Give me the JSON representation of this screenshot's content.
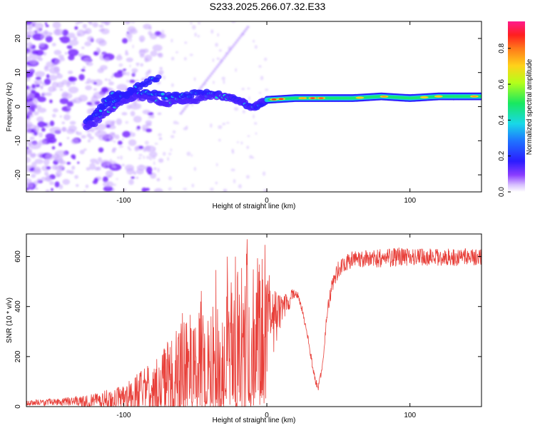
{
  "title": "S233.2025.266.07.32.E33",
  "chart_data": [
    {
      "type": "heatmap",
      "xlabel": "Height of straight line (km)",
      "ylabel": "Frequency (Hz)",
      "xlim": [
        -168,
        150
      ],
      "ylim": [
        -25,
        25
      ],
      "xticks": [
        -100,
        0,
        100
      ],
      "xtick_labels": [
        "-100",
        "0",
        "100"
      ],
      "yticks": [
        -20,
        -10,
        0,
        10,
        20
      ],
      "ytick_labels": [
        "-20",
        "-10",
        "0",
        "10",
        "20"
      ],
      "ridge": {
        "x": [
          -126,
          -118,
          -110,
          -100,
          -90,
          -80,
          -70,
          -60,
          -50,
          -40,
          -30,
          -20,
          -12,
          -8,
          0,
          20,
          40,
          60,
          80,
          100,
          120,
          145
        ],
        "upper_freq": [
          -5,
          -1,
          3,
          4,
          4,
          4,
          3,
          3,
          4,
          4,
          3,
          2,
          0,
          0,
          2,
          2.5,
          2.5,
          2.5,
          3,
          2.5,
          3,
          3
        ],
        "lower_freq": [
          -6,
          -4,
          -1,
          2,
          3,
          2,
          1,
          2,
          2,
          3,
          3,
          2,
          0,
          0,
          2,
          2.5,
          2.5,
          2.5,
          3,
          2.5,
          3,
          3
        ]
      },
      "upper_branch": {
        "x": [
          -120,
          -110,
          -100,
          -90,
          -80,
          -75
        ],
        "freq": [
          -3,
          1,
          3,
          6,
          8,
          9
        ]
      },
      "colorbar": {
        "label": "Normalized spectral amplitude",
        "min": 0.0,
        "max": 0.95,
        "ticks": [
          0.0,
          0.2,
          0.4,
          0.6,
          0.8
        ],
        "tick_labels": [
          "0.0",
          "0.2",
          "0.4",
          "0.6",
          "0.8"
        ]
      }
    },
    {
      "type": "line",
      "xlabel": "Height of straight line (km)",
      "ylabel": "SNR (10 * v/v)",
      "xlim": [
        -168,
        150
      ],
      "ylim": [
        0,
        690
      ],
      "xticks": [
        -100,
        0,
        100
      ],
      "xtick_labels": [
        "-100",
        "0",
        "100"
      ],
      "yticks": [
        0,
        200,
        400,
        600
      ],
      "ytick_labels": [
        "0",
        "200",
        "400",
        "600"
      ],
      "color": "#e8403a",
      "envelope": {
        "x": [
          -168,
          -140,
          -120,
          -100,
          -90,
          -80,
          -70,
          -60,
          -50,
          -40,
          -30,
          -20,
          -10,
          0,
          10,
          15,
          20,
          22,
          25,
          28,
          30,
          32,
          34,
          36,
          38,
          40,
          42,
          45,
          50,
          60,
          80,
          100,
          120,
          150
        ],
        "base": [
          15,
          20,
          25,
          35,
          50,
          70,
          95,
          120,
          150,
          175,
          210,
          240,
          275,
          320,
          380,
          420,
          460,
          440,
          380,
          300,
          230,
          160,
          100,
          80,
          140,
          210,
          380,
          470,
          550,
          590,
          595,
          600,
          595,
          600
        ],
        "spike": [
          15,
          25,
          40,
          80,
          130,
          150,
          230,
          300,
          310,
          350,
          380,
          440,
          440,
          450,
          120,
          80,
          40,
          30,
          30,
          30,
          30,
          30,
          30,
          30,
          40,
          50,
          60,
          60,
          70,
          70,
          80,
          75,
          70,
          70
        ]
      }
    }
  ]
}
